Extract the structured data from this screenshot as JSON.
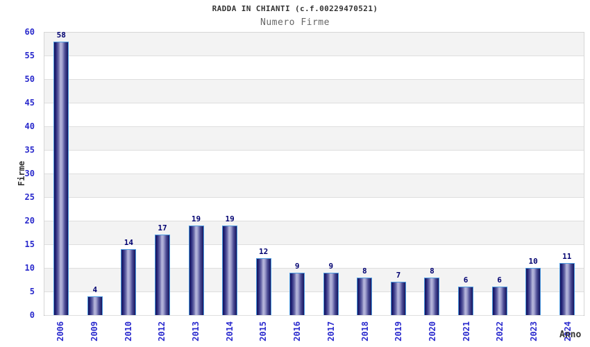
{
  "title": "RADDA IN CHIANTI (c.f.00229470521)",
  "subtitle": "Numero Firme",
  "chart_data": {
    "type": "bar",
    "categories": [
      "2006",
      "2009",
      "2010",
      "2012",
      "2013",
      "2014",
      "2015",
      "2016",
      "2017",
      "2018",
      "2019",
      "2020",
      "2021",
      "2022",
      "2023",
      "2024"
    ],
    "values": [
      58,
      4,
      14,
      17,
      19,
      19,
      12,
      9,
      9,
      8,
      7,
      8,
      6,
      6,
      10,
      11
    ],
    "title": "RADDA IN CHIANTI (c.f.00229470521)",
    "subtitle": "Numero Firme",
    "xlabel": "Anno",
    "ylabel": "Firme",
    "ylim": [
      0,
      60
    ],
    "ytick_step": 5,
    "grid": true,
    "legend": "none",
    "value_labels_shown": true
  },
  "colors": {
    "band_gray": "#f3f3f3",
    "band_white": "#ffffff",
    "gridline": "#dedede",
    "bar_dark": "#12125a",
    "bar_light": "#b8b8dc",
    "bar_border": "#4d9be0",
    "tick_label_blue": "#2929cc",
    "value_label_navy": "#000070",
    "title_color": "#333333",
    "subtitle_color": "#666666"
  }
}
